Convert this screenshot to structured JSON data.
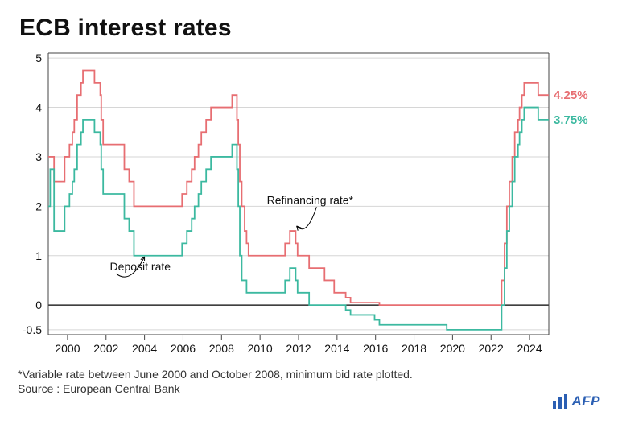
{
  "title": "ECB interest rates",
  "footnote": "*Variable rate between June 2000 and October 2008, minimum bid rate plotted.",
  "source": "Source : European Central Bank",
  "logo_text": "AFP",
  "chart": {
    "type": "step-line",
    "background_color": "#ffffff",
    "panel_border_color": "#444444",
    "grid_color": "#d6d6d6",
    "zero_line_color": "#000000",
    "font_color": "#111111",
    "axis_fontsize": 14,
    "title_fontsize": 30,
    "line_width": 1.8,
    "x_start": 1999.0,
    "x_end": 2025.0,
    "x_ticks": [
      2000,
      2002,
      2004,
      2006,
      2008,
      2010,
      2012,
      2014,
      2016,
      2018,
      2020,
      2022,
      2024
    ],
    "y_min": -0.6,
    "y_max": 5.1,
    "y_ticks": [
      -0.5,
      0,
      1,
      2,
      3,
      4,
      5
    ],
    "series": [
      {
        "name": "Refinancing rate*",
        "color": "#e76e72",
        "end_label": "4.25%",
        "annotation": {
          "text": "Refinancing rate*",
          "at_x": 2012.6,
          "at_y": 2.05,
          "arrow_to_x": 2011.9,
          "arrow_to_y": 1.6
        },
        "steps": [
          [
            1999.0,
            3.0
          ],
          [
            1999.3,
            2.5
          ],
          [
            1999.85,
            3.0
          ],
          [
            2000.1,
            3.25
          ],
          [
            2000.25,
            3.5
          ],
          [
            2000.35,
            3.75
          ],
          [
            2000.5,
            4.25
          ],
          [
            2000.7,
            4.5
          ],
          [
            2000.8,
            4.75
          ],
          [
            2001.4,
            4.5
          ],
          [
            2001.7,
            4.25
          ],
          [
            2001.75,
            3.75
          ],
          [
            2001.85,
            3.25
          ],
          [
            2002.95,
            2.75
          ],
          [
            2003.2,
            2.5
          ],
          [
            2003.45,
            2.0
          ],
          [
            2005.95,
            2.25
          ],
          [
            2006.2,
            2.5
          ],
          [
            2006.45,
            2.75
          ],
          [
            2006.6,
            3.0
          ],
          [
            2006.8,
            3.25
          ],
          [
            2006.95,
            3.5
          ],
          [
            2007.2,
            3.75
          ],
          [
            2007.45,
            4.0
          ],
          [
            2008.55,
            4.25
          ],
          [
            2008.8,
            3.75
          ],
          [
            2008.87,
            3.25
          ],
          [
            2008.95,
            2.5
          ],
          [
            2009.05,
            2.0
          ],
          [
            2009.2,
            1.5
          ],
          [
            2009.3,
            1.25
          ],
          [
            2009.4,
            1.0
          ],
          [
            2011.3,
            1.25
          ],
          [
            2011.55,
            1.5
          ],
          [
            2011.85,
            1.25
          ],
          [
            2011.95,
            1.0
          ],
          [
            2012.55,
            0.75
          ],
          [
            2013.35,
            0.5
          ],
          [
            2013.85,
            0.25
          ],
          [
            2014.45,
            0.15
          ],
          [
            2014.7,
            0.05
          ],
          [
            2016.2,
            0.0
          ],
          [
            2022.55,
            0.5
          ],
          [
            2022.7,
            1.25
          ],
          [
            2022.82,
            2.0
          ],
          [
            2022.95,
            2.5
          ],
          [
            2023.1,
            3.0
          ],
          [
            2023.23,
            3.5
          ],
          [
            2023.4,
            3.75
          ],
          [
            2023.48,
            4.0
          ],
          [
            2023.6,
            4.25
          ],
          [
            2023.72,
            4.5
          ],
          [
            2024.45,
            4.25
          ]
        ]
      },
      {
        "name": "Deposit rate",
        "color": "#3cb9a0",
        "end_label": "3.75%",
        "annotation": {
          "text": "Deposit rate",
          "at_x": 2002.2,
          "at_y": 0.7,
          "arrow_to_x": 2004.0,
          "arrow_to_y": 0.98
        },
        "steps": [
          [
            1999.0,
            2.0
          ],
          [
            1999.1,
            2.75
          ],
          [
            1999.3,
            1.5
          ],
          [
            1999.85,
            2.0
          ],
          [
            2000.1,
            2.25
          ],
          [
            2000.25,
            2.5
          ],
          [
            2000.35,
            2.75
          ],
          [
            2000.5,
            3.25
          ],
          [
            2000.7,
            3.5
          ],
          [
            2000.8,
            3.75
          ],
          [
            2001.4,
            3.5
          ],
          [
            2001.7,
            3.25
          ],
          [
            2001.75,
            2.75
          ],
          [
            2001.85,
            2.25
          ],
          [
            2002.95,
            1.75
          ],
          [
            2003.2,
            1.5
          ],
          [
            2003.45,
            1.0
          ],
          [
            2005.95,
            1.25
          ],
          [
            2006.2,
            1.5
          ],
          [
            2006.45,
            1.75
          ],
          [
            2006.6,
            2.0
          ],
          [
            2006.8,
            2.25
          ],
          [
            2006.95,
            2.5
          ],
          [
            2007.2,
            2.75
          ],
          [
            2007.45,
            3.0
          ],
          [
            2008.55,
            3.25
          ],
          [
            2008.8,
            2.75
          ],
          [
            2008.87,
            2.0
          ],
          [
            2008.95,
            1.0
          ],
          [
            2009.05,
            0.5
          ],
          [
            2009.3,
            0.25
          ],
          [
            2011.3,
            0.5
          ],
          [
            2011.55,
            0.75
          ],
          [
            2011.85,
            0.5
          ],
          [
            2011.95,
            0.25
          ],
          [
            2012.55,
            0.0
          ],
          [
            2014.45,
            -0.1
          ],
          [
            2014.7,
            -0.2
          ],
          [
            2015.95,
            -0.3
          ],
          [
            2016.2,
            -0.4
          ],
          [
            2019.7,
            -0.5
          ],
          [
            2022.55,
            0.0
          ],
          [
            2022.7,
            0.75
          ],
          [
            2022.82,
            1.5
          ],
          [
            2022.95,
            2.0
          ],
          [
            2023.1,
            2.5
          ],
          [
            2023.23,
            3.0
          ],
          [
            2023.4,
            3.25
          ],
          [
            2023.48,
            3.5
          ],
          [
            2023.6,
            3.75
          ],
          [
            2023.72,
            4.0
          ],
          [
            2024.45,
            3.75
          ]
        ]
      }
    ]
  }
}
